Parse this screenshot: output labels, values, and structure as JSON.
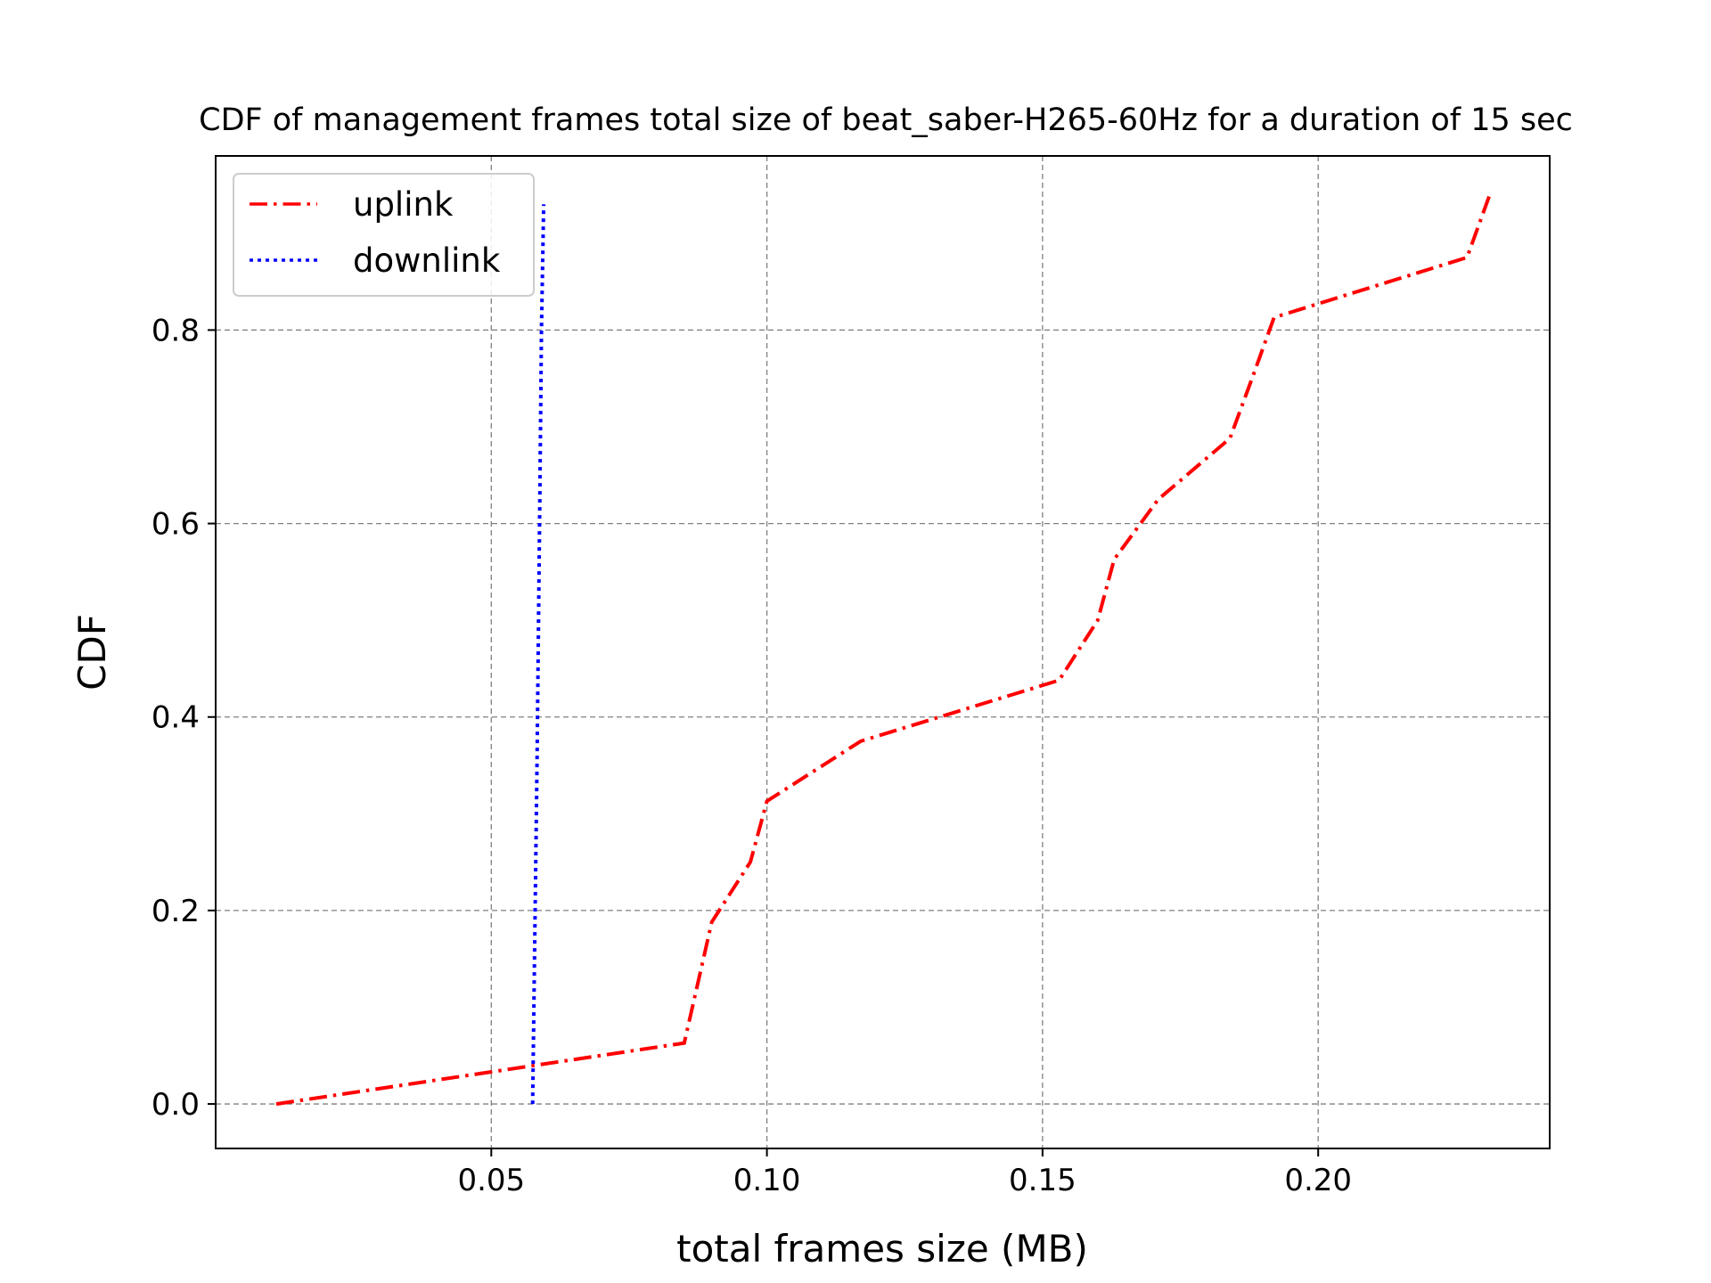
{
  "chart_data": {
    "type": "line",
    "title": "CDF of management frames total size of beat_saber-H265-60Hz for a duration of 15 sec",
    "xlabel": "total frames size (MB)",
    "ylabel": "CDF",
    "xlim": [
      0.0,
      0.242
    ],
    "ylim": [
      -0.046,
      0.98
    ],
    "x_ticks": [
      0.05,
      0.1,
      0.15,
      0.2
    ],
    "x_tick_labels": [
      "0.05",
      "0.10",
      "0.15",
      "0.20"
    ],
    "y_ticks": [
      0.0,
      0.2,
      0.4,
      0.6,
      0.8
    ],
    "y_tick_labels": [
      "0.0",
      "0.2",
      "0.4",
      "0.6",
      "0.8"
    ],
    "grid": true,
    "legend_position": "top-left",
    "series": [
      {
        "name": "uplink",
        "color": "#ff0000",
        "style": "dashdot",
        "x": [
          0.011,
          0.085,
          0.09,
          0.097,
          0.1,
          0.117,
          0.153,
          0.16,
          0.163,
          0.171,
          0.184,
          0.188,
          0.192,
          0.227,
          0.231
        ],
        "y": [
          0.0,
          0.063,
          0.188,
          0.25,
          0.313,
          0.375,
          0.438,
          0.5,
          0.563,
          0.625,
          0.688,
          0.75,
          0.813,
          0.875,
          0.938
        ]
      },
      {
        "name": "downlink",
        "color": "#0000ff",
        "style": "dotted",
        "x": [
          0.0575,
          0.0583,
          0.0588,
          0.0591,
          0.0595
        ],
        "y": [
          0.0,
          0.35,
          0.62,
          0.8,
          0.93
        ]
      }
    ]
  }
}
